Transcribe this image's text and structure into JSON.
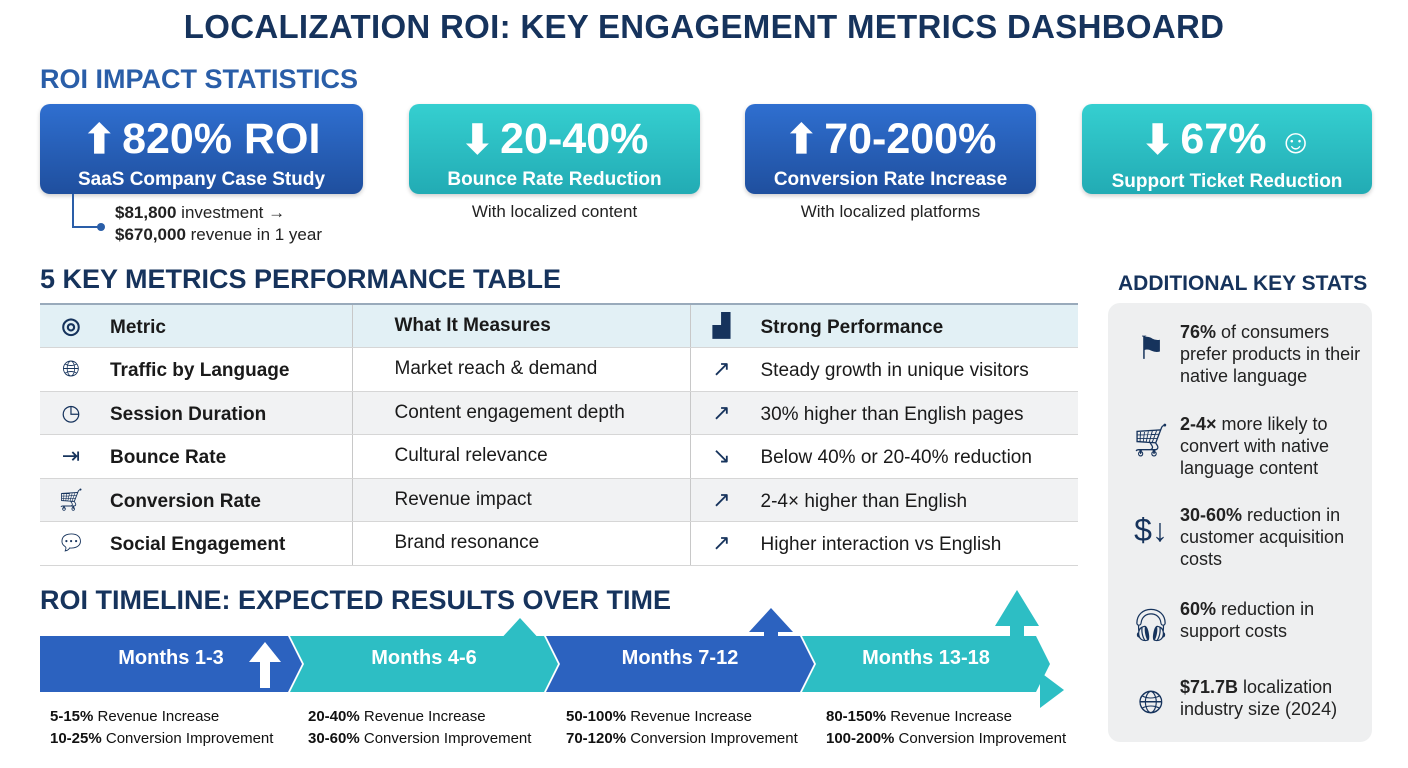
{
  "title": "LOCALIZATION ROI: KEY ENGAGEMENT METRICS DASHBOARD",
  "roi": {
    "heading": "ROI IMPACT STATISTICS",
    "cards": [
      {
        "value": "820% ROI",
        "label": "SaaS Company Case Study",
        "direction": "up",
        "color": "#2a5fbd"
      },
      {
        "value": "20-40%",
        "label": "Bounce Rate Reduction",
        "direction": "down",
        "color": "#2cbfc4"
      },
      {
        "value": "70-200%",
        "label": "Conversion Rate Increase",
        "direction": "up",
        "color": "#2a5fbd"
      },
      {
        "value": "67%",
        "label": "Support Ticket Reduction",
        "direction": "down",
        "color": "#2cbfc4",
        "icon": "support-agent-icon"
      }
    ],
    "case_note": {
      "line1_bold": "$81,800",
      "line1": " investment →",
      "line2_bold": "$670,000",
      "line2": " revenue in 1 year"
    },
    "bounce_note": "With localized content",
    "conversion_note": "With localized platforms"
  },
  "table": {
    "heading": "5 KEY METRICS PERFORMANCE TABLE",
    "headers": [
      "Metric",
      "What It Measures",
      "Strong Performance"
    ],
    "rows": [
      {
        "icon": "globe-cursor-icon",
        "metric": "Traffic by Language",
        "measures": "Market reach & demand",
        "performance": "Steady growth in unique visitors",
        "trend": "up"
      },
      {
        "icon": "clock-icon",
        "metric": "Session Duration",
        "measures": "Content engagement depth",
        "performance": "30% higher than English pages",
        "trend": "up"
      },
      {
        "icon": "exit-door-icon",
        "metric": "Bounce Rate",
        "measures": "Cultural relevance",
        "performance": "Below 40% or 20-40% reduction",
        "trend": "down"
      },
      {
        "icon": "cart-check-icon",
        "metric": "Conversion Rate",
        "measures": "Revenue impact",
        "performance": "2-4× higher than English",
        "trend": "up"
      },
      {
        "icon": "chat-bubbles-icon",
        "metric": "Social Engagement",
        "measures": "Brand resonance",
        "performance": "Higher interaction vs English",
        "trend": "up"
      }
    ]
  },
  "additional": {
    "heading": "ADDITIONAL KEY STATS",
    "items": [
      {
        "icon": "person-flag-icon",
        "bold": "76%",
        "text": " of consumers prefer products in their native language"
      },
      {
        "icon": "cart-download-icon",
        "bold": "2-4×",
        "text": " more likely to convert with native language content"
      },
      {
        "icon": "money-bag-down-icon",
        "bold": "30-60%",
        "text": " reduction in customer acquisition costs"
      },
      {
        "icon": "headset-down-icon",
        "bold": "60%",
        "text": " reduction in support costs"
      },
      {
        "icon": "globe-dollar-icon",
        "bold": "$71.7B",
        "text": " localization industry size (2024)"
      }
    ]
  },
  "timeline": {
    "heading": "ROI TIMELINE: EXPECTED RESULTS OVER TIME",
    "phases": [
      {
        "label": "Months 1-3",
        "revenue_bold": "5-15%",
        "revenue": " Revenue Increase",
        "conversion_bold": "10-25%",
        "conversion": " Conversion Improvement"
      },
      {
        "label": "Months 4-6",
        "revenue_bold": "20-40%",
        "revenue": " Revenue Increase",
        "conversion_bold": "30-60%",
        "conversion": " Conversion Improvement"
      },
      {
        "label": "Months 7-12",
        "revenue_bold": "50-100%",
        "revenue": " Revenue Increase",
        "conversion_bold": "70-120%",
        "conversion": " Conversion Improvement"
      },
      {
        "label": "Months 13-18",
        "revenue_bold": "80-150%",
        "revenue": " Revenue Increase",
        "conversion_bold": "100-200%",
        "conversion": " Conversion Improvement"
      }
    ]
  }
}
